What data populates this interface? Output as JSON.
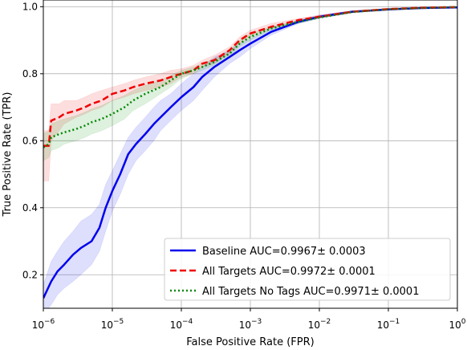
{
  "chart_data": {
    "type": "line",
    "xlabel": "False Positive Rate (FPR)",
    "ylabel": "True Positive Rate (TPR)",
    "x_scale": "log",
    "xlim": [
      1e-06,
      1
    ],
    "ylim": [
      0.1,
      1.02
    ],
    "grid": true,
    "legend_position": "lower-right",
    "x_ticks": [
      {
        "value": 1e-06,
        "base": "10",
        "exp": "−6"
      },
      {
        "value": 1e-05,
        "base": "10",
        "exp": "−5"
      },
      {
        "value": 0.0001,
        "base": "10",
        "exp": "−4"
      },
      {
        "value": 0.001,
        "base": "10",
        "exp": "−3"
      },
      {
        "value": 0.01,
        "base": "10",
        "exp": "−2"
      },
      {
        "value": 0.1,
        "base": "10",
        "exp": "−1"
      },
      {
        "value": 1,
        "base": "10",
        "exp": "0"
      }
    ],
    "y_ticks": [
      {
        "value": 0.2,
        "label": "0.2"
      },
      {
        "value": 0.4,
        "label": "0.4"
      },
      {
        "value": 0.6,
        "label": "0.6"
      },
      {
        "value": 0.8,
        "label": "0.8"
      },
      {
        "value": 1.0,
        "label": "1.0"
      }
    ],
    "series": [
      {
        "name": "Baseline AUC=0.9967± 0.0003",
        "color": "#0000ee",
        "dash": "solid",
        "x": [
          1e-06,
          1.3e-06,
          1.6e-06,
          2e-06,
          2.7e-06,
          3.5e-06,
          5e-06,
          6.5e-06,
          8e-06,
          1e-05,
          1.3e-05,
          1.7e-05,
          2.2e-05,
          3e-05,
          4e-05,
          5e-05,
          7e-05,
          0.0001,
          0.00015,
          0.0002,
          0.0003,
          0.0005,
          0.0007,
          0.001,
          0.002,
          0.005,
          0.01,
          0.03,
          0.1,
          0.3,
          1
        ],
        "y": [
          0.13,
          0.18,
          0.21,
          0.23,
          0.26,
          0.28,
          0.3,
          0.34,
          0.4,
          0.45,
          0.5,
          0.56,
          0.59,
          0.62,
          0.65,
          0.67,
          0.7,
          0.73,
          0.76,
          0.79,
          0.82,
          0.85,
          0.87,
          0.89,
          0.925,
          0.955,
          0.97,
          0.985,
          0.992,
          0.996,
          0.998
        ],
        "lower": [
          0.08,
          0.11,
          0.14,
          0.16,
          0.18,
          0.2,
          0.23,
          0.27,
          0.33,
          0.39,
          0.44,
          0.5,
          0.54,
          0.57,
          0.6,
          0.63,
          0.66,
          0.69,
          0.72,
          0.75,
          0.79,
          0.83,
          0.85,
          0.875,
          0.915,
          0.95,
          0.965,
          0.982,
          0.99,
          0.995,
          0.997
        ],
        "upper": [
          0.17,
          0.24,
          0.27,
          0.3,
          0.33,
          0.36,
          0.38,
          0.41,
          0.47,
          0.51,
          0.56,
          0.61,
          0.64,
          0.67,
          0.7,
          0.72,
          0.74,
          0.77,
          0.8,
          0.82,
          0.85,
          0.87,
          0.89,
          0.905,
          0.935,
          0.96,
          0.975,
          0.988,
          0.994,
          0.997,
          0.999
        ]
      },
      {
        "name": "All Targets AUC=0.9972± 0.0001",
        "color": "#ee0000",
        "dash": "dashed",
        "x": [
          1e-06,
          1.2e-06,
          1.3e-06,
          1.7e-06,
          2e-06,
          3e-06,
          4e-06,
          5e-06,
          7e-06,
          1e-05,
          1.5e-05,
          2e-05,
          3e-05,
          5e-05,
          7e-05,
          0.0001,
          0.00015,
          0.0002,
          0.0003,
          0.0005,
          0.0007,
          0.001,
          0.002,
          0.005,
          0.01,
          0.03,
          0.1,
          0.3,
          1
        ],
        "y": [
          0.585,
          0.585,
          0.66,
          0.67,
          0.68,
          0.69,
          0.7,
          0.71,
          0.72,
          0.74,
          0.75,
          0.76,
          0.77,
          0.78,
          0.79,
          0.8,
          0.81,
          0.83,
          0.84,
          0.87,
          0.9,
          0.92,
          0.94,
          0.96,
          0.97,
          0.985,
          0.993,
          0.997,
          0.999
        ],
        "lower": [
          0.48,
          0.48,
          0.6,
          0.63,
          0.65,
          0.67,
          0.68,
          0.69,
          0.7,
          0.72,
          0.73,
          0.74,
          0.75,
          0.76,
          0.77,
          0.79,
          0.8,
          0.82,
          0.83,
          0.86,
          0.89,
          0.91,
          0.935,
          0.955,
          0.967,
          0.983,
          0.992,
          0.996,
          0.998
        ],
        "upper": [
          0.63,
          0.63,
          0.71,
          0.71,
          0.72,
          0.72,
          0.73,
          0.74,
          0.75,
          0.76,
          0.77,
          0.78,
          0.79,
          0.8,
          0.81,
          0.815,
          0.825,
          0.84,
          0.855,
          0.88,
          0.91,
          0.93,
          0.95,
          0.965,
          0.975,
          0.988,
          0.995,
          0.998,
          1.0
        ]
      },
      {
        "name": "All Targets No Tags AUC=0.9971± 0.0001",
        "color": "#008800",
        "dash": "dotted",
        "x": [
          1e-06,
          1.2e-06,
          1.3e-06,
          1.7e-06,
          2e-06,
          3e-06,
          4e-06,
          5e-06,
          7e-06,
          1e-05,
          1.5e-05,
          2e-05,
          3e-05,
          5e-05,
          7e-05,
          0.0001,
          0.00015,
          0.0002,
          0.0003,
          0.0005,
          0.0007,
          0.001,
          0.002,
          0.005,
          0.01,
          0.03,
          0.1,
          0.3,
          1
        ],
        "y": [
          0.58,
          0.59,
          0.61,
          0.62,
          0.625,
          0.635,
          0.645,
          0.655,
          0.665,
          0.68,
          0.7,
          0.72,
          0.74,
          0.76,
          0.78,
          0.8,
          0.81,
          0.82,
          0.835,
          0.86,
          0.89,
          0.91,
          0.935,
          0.955,
          0.968,
          0.984,
          0.992,
          0.996,
          0.999
        ],
        "lower": [
          0.54,
          0.55,
          0.57,
          0.58,
          0.59,
          0.6,
          0.61,
          0.62,
          0.63,
          0.645,
          0.665,
          0.69,
          0.71,
          0.74,
          0.76,
          0.785,
          0.8,
          0.81,
          0.825,
          0.85,
          0.88,
          0.9,
          0.93,
          0.95,
          0.965,
          0.982,
          0.991,
          0.995,
          0.998
        ],
        "upper": [
          0.62,
          0.63,
          0.65,
          0.66,
          0.665,
          0.675,
          0.685,
          0.695,
          0.705,
          0.72,
          0.735,
          0.75,
          0.765,
          0.78,
          0.795,
          0.81,
          0.82,
          0.83,
          0.845,
          0.87,
          0.9,
          0.92,
          0.94,
          0.96,
          0.972,
          0.986,
          0.994,
          0.997,
          1.0
        ]
      }
    ]
  }
}
